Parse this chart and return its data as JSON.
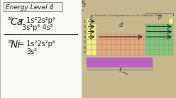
{
  "bg_color": "#e8e4dc",
  "left_bg": "#f8f8f5",
  "title": "Energy Level 4",
  "title_box_color": "#f0f0ee",
  "row5_label": "5",
  "eq1_pre": "20",
  "eq1_elem": "Ca",
  "eq1_line1": "= 1s²2s²p⁶",
  "eq1_line2": "3s²p⁶ 4s²",
  "eq2_pre": "28",
  "eq2_elem": "Ni",
  "eq2_line1": "= 1s²2s²p⁶",
  "eq2_line2": "3s²",
  "pt_title": "Electron Configurations in the Periodic Table",
  "s_color": "#f5f080",
  "p_color": "#80c878",
  "d_color": "#e8a878",
  "f_color": "#c060c8",
  "right_bg": "#c8b890",
  "text_dark": "#222222",
  "cell_border": "#888888",
  "arrow_color": "#111111",
  "label_s": "s",
  "label_p": "p",
  "label_d": "d",
  "label_f": "f",
  "row_labels": [
    "1",
    "2",
    "3",
    "4",
    "5",
    "6",
    "7"
  ]
}
